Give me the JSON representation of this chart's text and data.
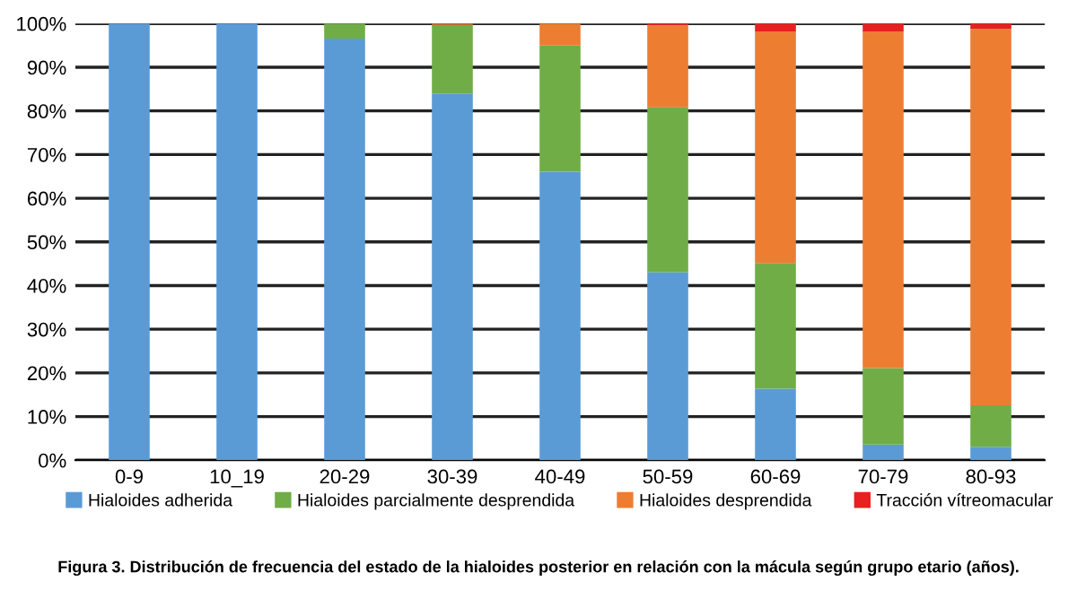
{
  "chart_data": {
    "type": "bar",
    "stacked": true,
    "categories": [
      "0-9",
      "10_19",
      "20-29",
      "30-39",
      "40-49",
      "50-59",
      "60-69",
      "70-79",
      "80-93"
    ],
    "series": [
      {
        "name": "Hialoides adherida",
        "color": "#5b9bd5",
        "values": [
          100,
          100,
          96.6,
          84.0,
          66.1,
          43.1,
          16.4,
          3.6,
          3.1
        ]
      },
      {
        "name": "Hialoides parcialmente desprendida",
        "color": "#70ad47",
        "values": [
          0,
          0,
          3.4,
          15.7,
          28.9,
          37.8,
          28.8,
          17.5,
          9.5
        ]
      },
      {
        "name": "Hialoides desprendida",
        "color": "#ed7d31",
        "values": [
          0,
          0,
          0,
          0.3,
          5.0,
          18.7,
          52.9,
          77.0,
          86.2
        ]
      },
      {
        "name": "Tracción vítreomacular",
        "color": "#e8201f",
        "values": [
          0,
          0,
          0,
          0,
          null,
          0.4,
          1.9,
          1.9,
          1.2
        ]
      }
    ],
    "ylim": [
      0,
      100
    ],
    "yticks": [
      {
        "value": 0,
        "label": "0%"
      },
      {
        "value": 10,
        "label": "10%"
      },
      {
        "value": 20,
        "label": "20%"
      },
      {
        "value": 30,
        "label": "30%"
      },
      {
        "value": 40,
        "label": "40%"
      },
      {
        "value": 50,
        "label": "50%"
      },
      {
        "value": 60,
        "label": "60%"
      },
      {
        "value": 70,
        "label": "70%"
      },
      {
        "value": 80,
        "label": "80%"
      },
      {
        "value": 90,
        "label": "90%"
      },
      {
        "value": 100,
        "label": "100%"
      }
    ],
    "grid": "y",
    "legend": "bottom",
    "annotations": [
      "Figura 3. Distribución de frecuencia del estado de la hialoides posterior en relación con la mácula según grupo etario (años)."
    ]
  }
}
